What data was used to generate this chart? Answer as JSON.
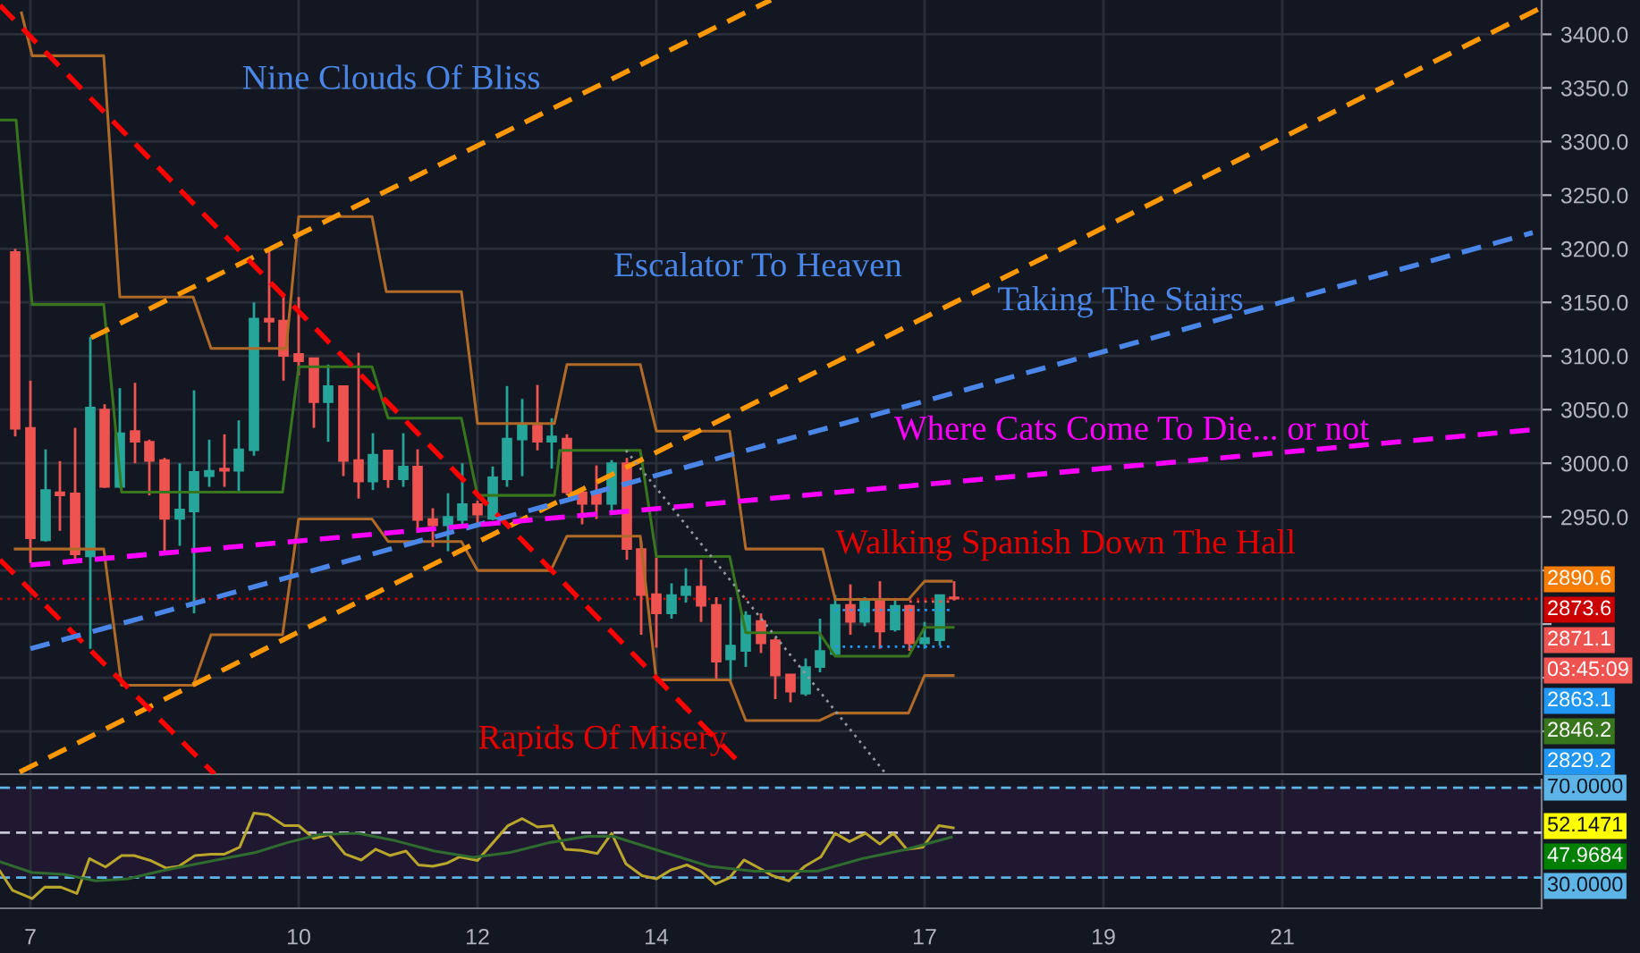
{
  "chart_data": [
    {
      "type": "candlestick",
      "x": [
        6.83,
        7.0,
        7.17,
        7.33,
        7.5,
        7.67,
        7.83,
        8.0,
        8.17,
        8.33,
        8.5,
        8.67,
        8.83,
        9.0,
        9.17,
        9.33,
        9.5,
        9.67,
        9.83,
        10.0,
        10.17,
        10.33,
        10.5,
        10.67,
        10.83,
        11.0,
        11.17,
        11.33,
        11.5,
        11.67,
        11.83,
        12.0,
        12.17,
        12.33,
        12.5,
        12.67,
        12.83,
        13.0,
        13.17,
        13.33,
        13.5,
        13.67,
        13.83,
        14.0,
        14.17,
        14.33,
        14.5,
        14.67,
        14.83,
        15.0,
        15.17,
        15.33,
        15.5,
        15.67,
        15.83,
        16.0,
        16.17,
        16.33,
        16.5,
        16.67,
        16.83,
        17.0,
        17.17,
        17.33
      ],
      "ohlc": [
        [
          3197,
          3200,
          3025,
          3032
        ],
        [
          3033,
          3077,
          2907,
          2930
        ],
        [
          2928,
          3013,
          2927,
          2975
        ],
        [
          2973,
          3002,
          2937,
          2970
        ],
        [
          2972,
          3033,
          2910,
          2915
        ],
        [
          2913,
          3118,
          2827,
          3052
        ],
        [
          3050,
          3055,
          2977,
          2978
        ],
        [
          2978,
          3070,
          2977,
          3028
        ],
        [
          3030,
          3075,
          3000,
          3020
        ],
        [
          3020,
          3022,
          2970,
          3002
        ],
        [
          3003,
          3005,
          2915,
          2948
        ],
        [
          2948,
          3000,
          2923,
          2957
        ],
        [
          2955,
          3068,
          2860,
          2992
        ],
        [
          2988,
          3022,
          2978,
          2993
        ],
        [
          2995,
          3027,
          2978,
          2993
        ],
        [
          2993,
          3040,
          2972,
          3013
        ],
        [
          3012,
          3150,
          3007,
          3135
        ],
        [
          3135,
          3198,
          3113,
          3132
        ],
        [
          3133,
          3157,
          3077,
          3100
        ],
        [
          3102,
          3155,
          3082,
          3095
        ],
        [
          3098,
          3098,
          3033,
          3057
        ],
        [
          3057,
          3092,
          3020,
          3072
        ],
        [
          3072,
          3072,
          2988,
          3002
        ],
        [
          3003,
          3103,
          2967,
          2983
        ],
        [
          2983,
          3028,
          2975,
          3008
        ],
        [
          3012,
          3012,
          2977,
          2985
        ],
        [
          2985,
          3028,
          2978,
          2997
        ],
        [
          2997,
          3013,
          2935,
          2947
        ],
        [
          2948,
          2958,
          2922,
          2942
        ],
        [
          2942,
          2972,
          2918,
          2950
        ],
        [
          2947,
          3000,
          2942,
          2962
        ],
        [
          2962,
          2965,
          2943,
          2952
        ],
        [
          2948,
          2997,
          2947,
          2987
        ],
        [
          2985,
          3072,
          2978,
          3023
        ],
        [
          3022,
          3060,
          2988,
          3037
        ],
        [
          3035,
          3073,
          3012,
          3020
        ],
        [
          3020,
          3042,
          2995,
          3025
        ],
        [
          3023,
          3027,
          2970,
          2973
        ],
        [
          2973,
          2977,
          2943,
          2962
        ],
        [
          2972,
          2998,
          2948,
          2962
        ],
        [
          2962,
          3003,
          2955,
          3000
        ],
        [
          3000,
          3005,
          2910,
          2920
        ],
        [
          2920,
          2927,
          2840,
          2877
        ],
        [
          2878,
          2912,
          2828,
          2860
        ],
        [
          2860,
          2888,
          2855,
          2877
        ],
        [
          2877,
          2902,
          2870,
          2885
        ],
        [
          2885,
          2910,
          2852,
          2867
        ],
        [
          2868,
          2875,
          2798,
          2815
        ],
        [
          2817,
          2875,
          2797,
          2830
        ],
        [
          2825,
          2862,
          2810,
          2858
        ],
        [
          2853,
          2860,
          2823,
          2832
        ],
        [
          2835,
          2837,
          2780,
          2802
        ],
        [
          2803,
          2803,
          2777,
          2787
        ],
        [
          2785,
          2818,
          2783,
          2810
        ],
        [
          2810,
          2855,
          2805,
          2825
        ],
        [
          2822,
          2877,
          2820,
          2868
        ],
        [
          2868,
          2887,
          2840,
          2852
        ],
        [
          2852,
          2875,
          2848,
          2872
        ],
        [
          2873,
          2890,
          2827,
          2843
        ],
        [
          2845,
          2872,
          2843,
          2867
        ],
        [
          2867,
          2868,
          2825,
          2832
        ],
        [
          2832,
          2852,
          2827,
          2837
        ],
        [
          2835,
          2877,
          2830,
          2877
        ],
        [
          2875,
          2890,
          2872,
          2873.6
        ]
      ],
      "colors": [
        "#ef5350",
        "#ef5350",
        "#26a69a",
        "#ef5350",
        "#ef5350",
        "#26a69a",
        "#ef5350",
        "#26a69a",
        "#ef5350",
        "#ef5350",
        "#ef5350",
        "#26a69a",
        "#26a69a",
        "#26a69a",
        "#ef5350",
        "#26a69a",
        "#26a69a",
        "#ef5350",
        "#ef5350",
        "#ef5350",
        "#ef5350",
        "#26a69a",
        "#ef5350",
        "#ef5350",
        "#26a69a",
        "#ef5350",
        "#26a69a",
        "#ef5350",
        "#ef5350",
        "#26a69a",
        "#26a69a",
        "#ef5350",
        "#26a69a",
        "#26a69a",
        "#26a69a",
        "#ef5350",
        "#26a69a",
        "#ef5350",
        "#ef5350",
        "#ef5350",
        "#26a69a",
        "#ef5350",
        "#ef5350",
        "#ef5350",
        "#26a69a",
        "#26a69a",
        "#ef5350",
        "#ef5350",
        "#26a69a",
        "#26a69a",
        "#ef5350",
        "#ef5350",
        "#ef5350",
        "#26a69a",
        "#26a69a",
        "#26a69a",
        "#ef5350",
        "#26a69a",
        "#ef5350",
        "#26a69a",
        "#ef5350",
        "#26a69a",
        "#26a69a",
        "#ef5350"
      ],
      "series": [
        {
          "type": "line",
          "color": "#b06a28",
          "line_style": "solid",
          "x": [
            6.9,
            7.02,
            7.82,
            8.0,
            8.82,
            9.02,
            9.86,
            10.0,
            10.82,
            10.98,
            11.82,
            12.0,
            12.86,
            13.0,
            13.82,
            14.0,
            14.82,
            15.0,
            15.86,
            16.0,
            16.82,
            17.0,
            17.3
          ],
          "values": [
            3420,
            3380,
            3380,
            3155,
            3155,
            3107,
            3107,
            3230,
            3230,
            3160,
            3160,
            3037,
            3037,
            3092,
            3092,
            3030,
            3030,
            2920,
            2920,
            2873,
            2873,
            2890,
            2890
          ]
        },
        {
          "type": "line",
          "color": "#b06a28",
          "line_style": "solid",
          "x": [
            6.83,
            7.82,
            8.02,
            8.82,
            9.02,
            9.82,
            10.0,
            10.82,
            11.0,
            11.82,
            12.0,
            12.82,
            13.0,
            13.82,
            14.0,
            14.82,
            15.0,
            15.82,
            16.0,
            16.82,
            17.0,
            17.32
          ],
          "values": [
            2920,
            2920,
            2793,
            2793,
            2840,
            2840,
            2948,
            2948,
            2927,
            2927,
            2900,
            2900,
            2932,
            2932,
            2798,
            2798,
            2760,
            2760,
            2767,
            2767,
            2802,
            2802
          ]
        },
        {
          "type": "line",
          "color": "#38761d",
          "line_style": "solid",
          "x": [
            6.66,
            6.84,
            7.02,
            7.82,
            8.02,
            9.82,
            10.0,
            10.82,
            11.0,
            11.82,
            12.0,
            12.86,
            12.92,
            13.82,
            14.0,
            14.82,
            15.0,
            15.82,
            16.0,
            16.82,
            17.0,
            17.32
          ],
          "values": [
            3320,
            3320,
            3148,
            3148,
            2973,
            2973,
            3090,
            3090,
            3042,
            3042,
            2970,
            2970,
            3012,
            3012,
            2913,
            2913,
            2842,
            2842,
            2820,
            2820,
            2847,
            2847
          ]
        },
        {
          "type": "line",
          "color": "#ff9800",
          "line_style": "dashed",
          "x": [
            7.68,
            15.28
          ],
          "values": [
            3117,
            3432
          ]
        },
        {
          "type": "line",
          "color": "#ff9800",
          "line_style": "dashed",
          "x": [
            6.88,
            23.9
          ],
          "values": [
            2712,
            3425
          ]
        },
        {
          "type": "line",
          "color": "#ff0000",
          "line_style": "dashed",
          "x": [
            6.66,
            14.96
          ],
          "values": [
            3427,
            2718
          ]
        },
        {
          "type": "line",
          "color": "#ff0000",
          "line_style": "dashed",
          "x": [
            6.66,
            9.06
          ],
          "values": [
            2910,
            2710
          ]
        },
        {
          "type": "line",
          "color": "#4a86e8",
          "line_style": "dashed",
          "x": [
            7.0,
            23.8
          ],
          "values": [
            2827,
            3215
          ]
        },
        {
          "type": "line",
          "color": "#ff00ff",
          "line_style": "dashed",
          "x": [
            7.0,
            23.9
          ],
          "values": [
            2905,
            3032
          ]
        },
        {
          "type": "line",
          "color": "#9598a1",
          "line_style": "dotted",
          "x": [
            13.66,
            16.57
          ],
          "values": [
            3012,
            2710
          ]
        },
        {
          "type": "line",
          "color": "#2196f3",
          "line_style": "dotted",
          "x": [
            16.0,
            17.33
          ],
          "values": [
            2863,
            2863
          ]
        },
        {
          "type": "line",
          "color": "#2196f3",
          "line_style": "dotted",
          "x": [
            16.0,
            17.33
          ],
          "values": [
            2829,
            2829
          ]
        },
        {
          "type": "line",
          "color": "#ef5350",
          "line_style": "dotted",
          "x": [
            16.83,
            17.33
          ],
          "values": [
            2871,
            2871
          ]
        }
      ],
      "xlim": [
        6.66,
        23.9
      ],
      "ylim": [
        2710,
        3432
      ],
      "xticks": [
        7,
        10,
        12,
        14,
        17,
        19,
        21
      ],
      "yticks": [
        {
          "value": 2750,
          "label": null
        },
        {
          "value": 2800,
          "label": null
        },
        {
          "value": 2850,
          "label": null
        },
        {
          "value": 2900,
          "label": null
        },
        {
          "value": 2950,
          "label": "2950.0"
        },
        {
          "value": 3000,
          "label": "3000.0"
        },
        {
          "value": 3050,
          "label": "3050.0"
        },
        {
          "value": 3100,
          "label": "3100.0"
        },
        {
          "value": 3150,
          "label": "3150.0"
        },
        {
          "value": 3200,
          "label": "3200.0"
        },
        {
          "value": 3250,
          "label": "3250.0"
        },
        {
          "value": 3300,
          "label": "3300.0"
        },
        {
          "value": 3350,
          "label": "3350.0"
        },
        {
          "value": 3400,
          "label": "3400.0"
        }
      ],
      "tick_labels": "y",
      "grid": true,
      "annotations": [
        "Nine Clouds Of Bliss",
        "Escalator To Heaven",
        "Taking The Stairs",
        "Where Cats Come To Die... or not",
        "Walking Spanish Down The Hall",
        "Rapids Of Misery",
        "2890.6",
        "2873.6",
        "2871.1",
        "03:45:09",
        "2863.1",
        "2846.2",
        "2829.2"
      ],
      "ref_lines": [
        {
          "axis": "y",
          "value": 2873.6,
          "color": "#cc0000",
          "line_style": "dotted"
        }
      ]
    },
    {
      "type": "line",
      "series": [
        {
          "color": "#b8a52c",
          "x": [
            6.66,
            6.8,
            7.02,
            7.16,
            7.34,
            7.52,
            7.66,
            7.84,
            8.02,
            8.16,
            8.34,
            8.52,
            8.66,
            8.84,
            9.02,
            9.17,
            9.34,
            9.5,
            9.66,
            9.84,
            10.0,
            10.17,
            10.34,
            10.52,
            10.7,
            10.86,
            11.02,
            11.2,
            11.34,
            11.5,
            11.66,
            11.8,
            12.0,
            12.16,
            12.34,
            12.5,
            12.67,
            12.84,
            12.98,
            13.16,
            13.34,
            13.5,
            13.66,
            13.84,
            14.0,
            14.16,
            14.34,
            14.5,
            14.66,
            14.82,
            14.98,
            15.15,
            15.3,
            15.48,
            15.66,
            15.84,
            16.0,
            16.16,
            16.34,
            16.5,
            16.65,
            16.8,
            16.98,
            17.16,
            17.32
          ],
          "values": [
            32.8,
            24.3,
            20.6,
            25.7,
            25.7,
            22.9,
            38.4,
            34.7,
            39.8,
            39.8,
            37.6,
            34.2,
            35.0,
            39.8,
            40.4,
            40.4,
            43.5,
            58.7,
            57.9,
            53.1,
            53.1,
            47.4,
            49.1,
            40.4,
            37.8,
            42.6,
            39.8,
            41.8,
            35.6,
            35.0,
            36.4,
            39.2,
            37.6,
            44.9,
            53.1,
            56.2,
            52.5,
            53.1,
            42.6,
            42.1,
            40.7,
            49.7,
            36.1,
            30.8,
            29.4,
            33.3,
            35.6,
            32.8,
            27.1,
            29.9,
            37.8,
            34.2,
            30.8,
            28.5,
            35.0,
            39.2,
            49.7,
            46.0,
            49.7,
            44.9,
            49.7,
            42.6,
            43.5,
            53.1,
            52.1
          ]
        },
        {
          "color": "#2f6b2f",
          "x": [
            6.66,
            7.02,
            7.37,
            7.73,
            8.09,
            8.45,
            8.8,
            9.16,
            9.52,
            9.87,
            10.23,
            10.66,
            11.09,
            11.52,
            11.95,
            12.37,
            12.8,
            13.23,
            13.52,
            14.09,
            14.59,
            15.09,
            15.8,
            16.3,
            16.8,
            17.3
          ],
          "values": [
            37.0,
            32.2,
            31.4,
            28.5,
            29.4,
            32.8,
            35.6,
            38.4,
            41.2,
            45.5,
            49.1,
            49.7,
            46.3,
            41.8,
            39.0,
            41.2,
            45.5,
            48.3,
            48.3,
            41.2,
            35.0,
            32.8,
            32.8,
            38.4,
            42.6,
            48.0
          ]
        }
      ],
      "xlim": [
        6.66,
        23.9
      ],
      "ylim": [
        16.3,
        73.6
      ],
      "xticks": [
        7,
        10,
        12,
        14,
        17,
        19,
        21
      ],
      "tick_labels": "x",
      "grid": "x",
      "bands": [
        {
          "axis": "y",
          "from": 30,
          "to": 70,
          "color": "#1f1830"
        }
      ],
      "ref_lines": [
        {
          "axis": "y",
          "value": 70,
          "label": "70.0000",
          "color": "#5db4e6",
          "line_style": "dashed"
        },
        {
          "axis": "y",
          "value": 50,
          "label": null,
          "color": "#c8c8d8",
          "line_style": "dashed"
        },
        {
          "axis": "y",
          "value": 30,
          "label": "30.0000",
          "color": "#5db4e6",
          "line_style": "dashed"
        }
      ],
      "annotations": [
        "52.1471",
        "47.9684"
      ]
    }
  ]
}
